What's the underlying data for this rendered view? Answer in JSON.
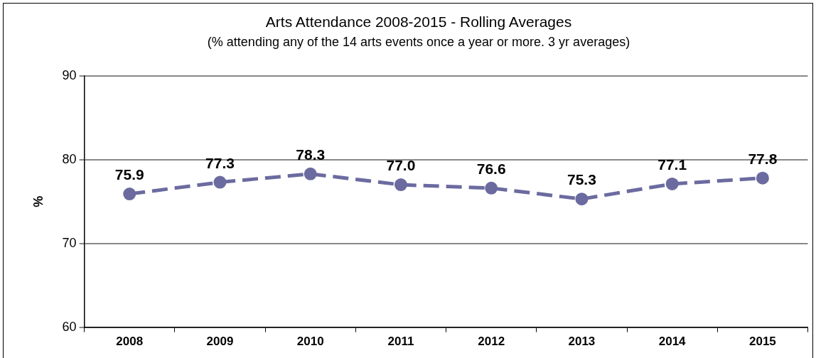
{
  "chart_data": {
    "type": "line",
    "title": "Arts Attendance 2008-2015 - Rolling Averages",
    "subtitle": "(% attending any of the 14 arts events once a year or more. 3 yr averages)",
    "ylabel": "%",
    "categories": [
      "2008",
      "2009",
      "2010",
      "2011",
      "2012",
      "2013",
      "2014",
      "2015"
    ],
    "series": [
      {
        "color": "#6b6ba0",
        "values": [
          75.9,
          77.3,
          78.3,
          77.0,
          76.6,
          75.3,
          77.1,
          77.8
        ],
        "value_labels": [
          "75.9",
          "77.3",
          "78.3",
          "77.0",
          "76.6",
          "75.3",
          "77.1",
          "77.8"
        ]
      }
    ],
    "ylim": [
      60,
      90
    ],
    "yticks": [
      60,
      70,
      80,
      90
    ],
    "grid": "y",
    "legend": false,
    "marker": "circle",
    "line_style": "dashed"
  }
}
